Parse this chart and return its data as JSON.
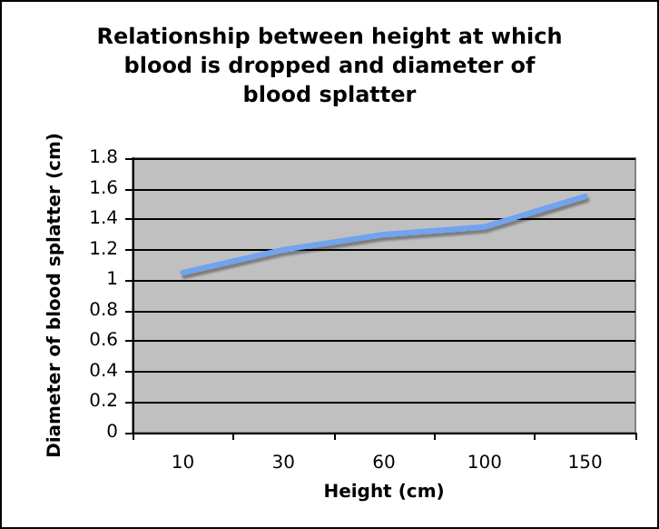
{
  "chart_data": {
    "type": "line",
    "title": "Relationship between height at which blood is dropped and diameter of blood splatter",
    "xlabel": "Height (cm)",
    "ylabel": "Diameter of blood splatter (cm)",
    "categories": [
      "10",
      "30",
      "60",
      "100",
      "150"
    ],
    "series": [
      {
        "color": "#6fa3f0",
        "values": [
          1.05,
          1.2,
          1.3,
          1.35,
          1.55
        ]
      }
    ],
    "ylim": [
      0,
      1.8
    ],
    "yticks": [
      0,
      0.2,
      0.4,
      0.6,
      0.8,
      1,
      1.2,
      1.4,
      1.6,
      1.8
    ],
    "grid": "y",
    "marker": "none",
    "line_style": "solid"
  }
}
